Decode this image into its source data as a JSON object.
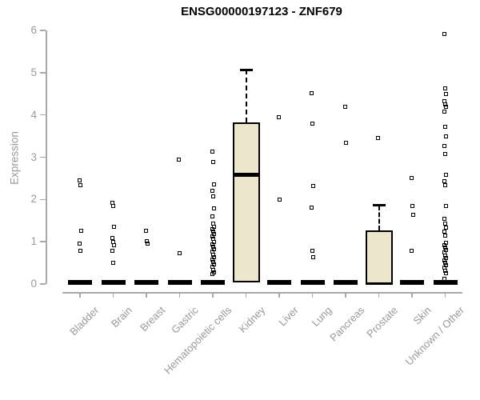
{
  "chart_data": {
    "type": "boxplot",
    "title": "ENSG00000197123 - ZNF679",
    "ylabel": "Expression",
    "xlabel": "",
    "ylim": [
      0,
      6
    ],
    "yticks": [
      0,
      1,
      2,
      3,
      4,
      5,
      6
    ],
    "grid": false,
    "legend": null,
    "box_fill_color": "#ECE7CC",
    "axis_color": "#A9A9A9",
    "tick_text_color": "#9A9A9A",
    "point_color": "#000000",
    "categories": [
      "Bladder",
      "Brain",
      "Breast",
      "Gastric",
      "Hematopoietic cells",
      "Kidney",
      "Liver",
      "Lung",
      "Pancreas",
      "Prostate",
      "Skin",
      "Unknown / Other"
    ],
    "series": [
      {
        "category": "Bladder",
        "flat_box_at_zero": true,
        "box": null,
        "outliers": [
          2.45,
          2.33,
          1.26,
          0.96,
          0.79
        ]
      },
      {
        "category": "Brain",
        "flat_box_at_zero": true,
        "box": null,
        "outliers": [
          1.92,
          1.84,
          1.35,
          1.08,
          1.0,
          0.92,
          0.78,
          0.51
        ]
      },
      {
        "category": "Breast",
        "flat_box_at_zero": true,
        "box": null,
        "outliers": [
          1.25,
          1.02,
          0.95
        ]
      },
      {
        "category": "Gastric",
        "flat_box_at_zero": true,
        "box": null,
        "outliers": [
          2.94,
          0.72
        ]
      },
      {
        "category": "Hematopoietic cells",
        "flat_box_at_zero": true,
        "box": null,
        "outliers": [
          3.13,
          2.89,
          2.36,
          2.21,
          2.08,
          1.79,
          1.6,
          1.42,
          1.36,
          1.3,
          1.24,
          1.18,
          1.12,
          1.06,
          1.0,
          0.94,
          0.88,
          0.82,
          0.76,
          0.7,
          0.64,
          0.58,
          0.52,
          0.46,
          0.4,
          0.34,
          0.28,
          0.23
        ]
      },
      {
        "category": "Kidney",
        "flat_box_at_zero": false,
        "box": {
          "q1": 0.04,
          "median": 2.58,
          "q3": 3.82,
          "whisker_high": 5.07
        },
        "outliers": []
      },
      {
        "category": "Liver",
        "flat_box_at_zero": true,
        "box": null,
        "outliers": [
          3.94,
          2.0
        ]
      },
      {
        "category": "Lung",
        "flat_box_at_zero": true,
        "box": null,
        "outliers": [
          4.51,
          3.8,
          2.32,
          1.81,
          0.79,
          0.63
        ]
      },
      {
        "category": "Pancreas",
        "flat_box_at_zero": true,
        "box": null,
        "outliers": [
          4.19,
          3.34
        ]
      },
      {
        "category": "Prostate",
        "flat_box_at_zero": true,
        "box": {
          "q1": 0.0,
          "median": 0.0,
          "q3": 1.26,
          "whisker_high": 1.86
        },
        "outliers": [
          3.45
        ]
      },
      {
        "category": "Skin",
        "flat_box_at_zero": true,
        "box": null,
        "outliers": [
          2.51,
          1.85,
          1.64,
          0.79
        ]
      },
      {
        "category": "Unknown / Other",
        "flat_box_at_zero": true,
        "box": null,
        "outliers": [
          5.91,
          4.62,
          4.5,
          4.32,
          4.25,
          4.19,
          4.08,
          3.72,
          3.49,
          3.26,
          3.08,
          2.58,
          2.43,
          2.33,
          1.85,
          1.55,
          1.43,
          1.33,
          1.24,
          1.15,
          0.98,
          0.92,
          0.86,
          0.8,
          0.74,
          0.68,
          0.62,
          0.56,
          0.5,
          0.44,
          0.38,
          0.32,
          0.26,
          0.13
        ]
      }
    ]
  }
}
